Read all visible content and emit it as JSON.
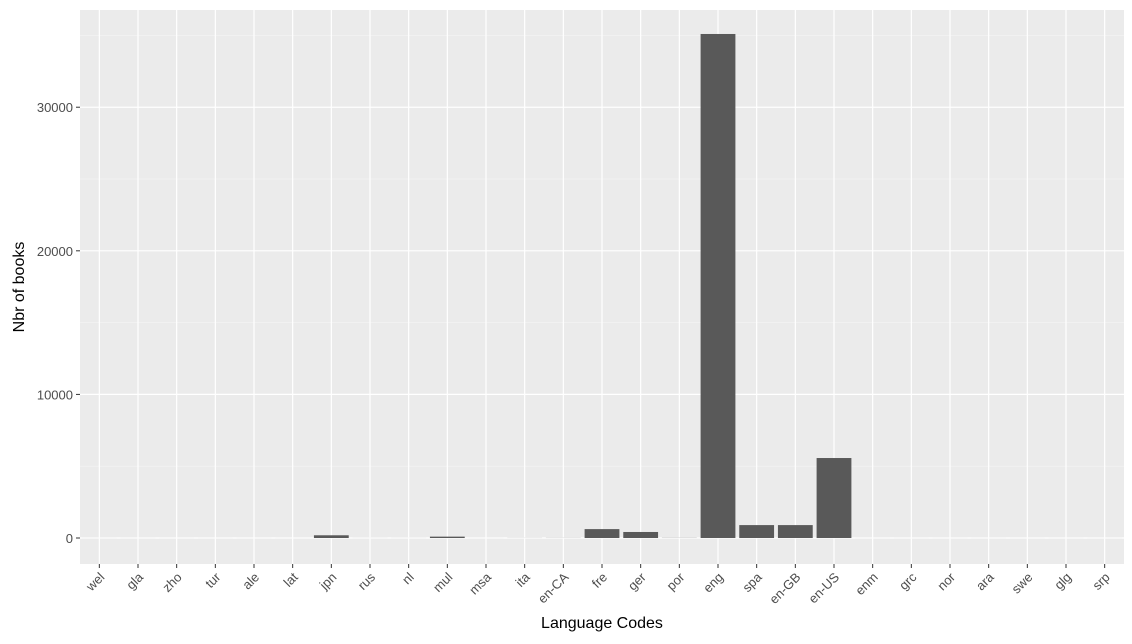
{
  "chart_data": {
    "type": "bar",
    "x_label": "Language Codes",
    "y_label": "Nbr of books",
    "categories": [
      "wel",
      "gla",
      "zho",
      "tur",
      "ale",
      "lat",
      "jpn",
      "rus",
      "nl",
      "mul",
      "msa",
      "ita",
      "en-CA",
      "fre",
      "ger",
      "por",
      "eng",
      "spa",
      "en-GB",
      "en-US",
      "enm",
      "grc",
      "nor",
      "ara",
      "swe",
      "glg",
      "srp"
    ],
    "values": [
      1,
      1,
      1,
      1,
      1,
      1,
      190,
      2,
      2,
      95,
      1,
      5,
      7,
      620,
      420,
      10,
      35100,
      900,
      900,
      5570,
      1,
      1,
      1,
      1,
      1,
      1,
      1
    ],
    "color": "#595959",
    "ylim": [
      -1810,
      36770
    ],
    "yticks": [
      0,
      10000,
      20000,
      30000
    ],
    "minor_yticks": [
      5000,
      15000,
      25000,
      35000
    ],
    "grid": true
  }
}
